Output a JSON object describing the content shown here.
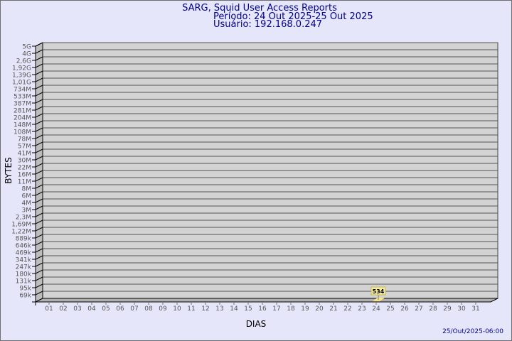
{
  "title": "SARG, Squid User Access Reports",
  "period": "Período: 24 Out 2025-25 Out 2025",
  "user": "Usuário: 192.168.0.247",
  "timestamp": "25/Out/2025-06:00",
  "colors": {
    "background": "#e6e6fa",
    "plot": "#d3d3d3",
    "bar": "#f5e68c",
    "title": "#00008b"
  },
  "chart_data": {
    "type": "bar",
    "xlabel": "DIAS",
    "ylabel": "BYTES",
    "y_scale": "log",
    "y_tick_labels": [
      "5G",
      "4G",
      "2,6G",
      "1,92G",
      "1,39G",
      "1,01G",
      "734M",
      "533M",
      "387M",
      "281M",
      "204M",
      "148M",
      "108M",
      "78M",
      "57M",
      "41M",
      "30M",
      "22M",
      "16M",
      "11M",
      "8M",
      "6M",
      "4M",
      "3M",
      "2,3M",
      "1,69M",
      "1,22M",
      "889k",
      "646k",
      "469k",
      "341k",
      "247k",
      "180k",
      "131k",
      "95k",
      "69k"
    ],
    "categories": [
      "01",
      "02",
      "03",
      "04",
      "05",
      "06",
      "07",
      "08",
      "09",
      "10",
      "11",
      "12",
      "13",
      "14",
      "15",
      "16",
      "17",
      "18",
      "19",
      "20",
      "21",
      "22",
      "23",
      "24",
      "25",
      "26",
      "27",
      "28",
      "29",
      "30",
      "31"
    ],
    "bars": [
      {
        "x": "24",
        "value": 534,
        "label": "534"
      }
    ],
    "grid": true
  }
}
